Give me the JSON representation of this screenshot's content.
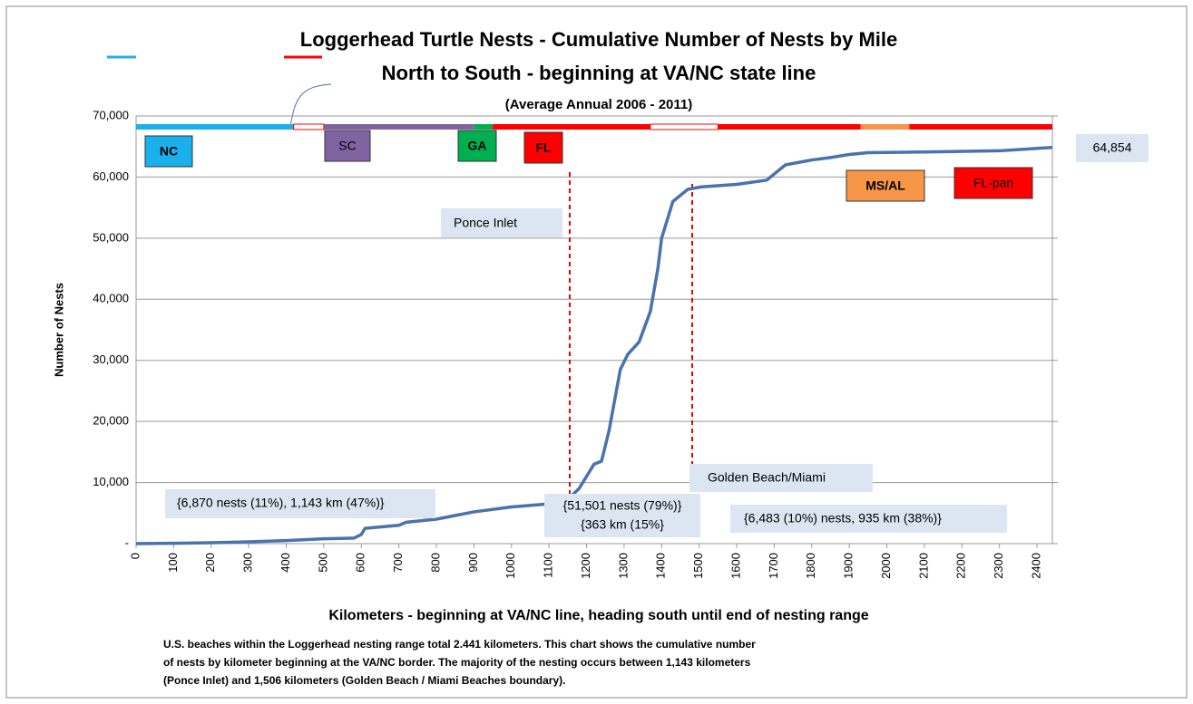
{
  "chart_data": {
    "type": "line",
    "title": "Loggerhead Turtle Nests - Cumulative Number of Nests by Mile",
    "subtitle": "North to South - beginning at VA/NC state line",
    "subtitle2": "(Average Annual  2006 - 2011)",
    "xlabel": "Kilometers - beginning at VA/NC line, heading south until end of nesting range",
    "ylabel": "Number of Nests",
    "xlim": [
      0,
      2441
    ],
    "ylim": [
      0,
      70000
    ],
    "xticks": [
      0,
      100,
      200,
      300,
      400,
      500,
      600,
      700,
      800,
      900,
      1000,
      1100,
      1200,
      1300,
      1400,
      1500,
      1600,
      1700,
      1800,
      1900,
      2000,
      2100,
      2200,
      2300,
      2400
    ],
    "yticks": [
      {
        "value": 0,
        "label": "-"
      },
      {
        "value": 10000,
        "label": "10,000"
      },
      {
        "value": 20000,
        "label": "20,000"
      },
      {
        "value": 30000,
        "label": "30,000"
      },
      {
        "value": 40000,
        "label": "40,000"
      },
      {
        "value": 50000,
        "label": "50,000"
      },
      {
        "value": 60000,
        "label": "60,000"
      },
      {
        "value": 70000,
        "label": "70,000"
      }
    ],
    "grid": true,
    "x": [
      0,
      100,
      200,
      300,
      400,
      500,
      580,
      600,
      610,
      700,
      720,
      800,
      900,
      1000,
      1100,
      1143,
      1180,
      1220,
      1240,
      1260,
      1290,
      1310,
      1340,
      1370,
      1390,
      1400,
      1430,
      1470,
      1506,
      1600,
      1680,
      1700,
      1730,
      1800,
      1850,
      1900,
      1950,
      2100,
      2300,
      2441
    ],
    "series": [
      {
        "color": "#4a72ad",
        "values": [
          0,
          50,
          150,
          300,
          500,
          800,
          900,
          1500,
          2500,
          3000,
          3500,
          4000,
          5200,
          6000,
          6500,
          6870,
          9000,
          13000,
          13500,
          18500,
          28500,
          31000,
          33000,
          38000,
          45000,
          50000,
          56000,
          58000,
          58400,
          58800,
          59500,
          60500,
          62000,
          62800,
          63200,
          63700,
          64000,
          64100,
          64300,
          64854
        ]
      }
    ],
    "regions": [
      {
        "label": "NC",
        "color": "#1ab0ec"
      },
      {
        "label": "SC",
        "color": "#8064a2"
      },
      {
        "label": "GA",
        "color": "#00b050"
      },
      {
        "label": "FL",
        "color": "#ff0000"
      },
      {
        "label": "MS/AL",
        "color": "#f79646"
      },
      {
        "label": "FL-pan",
        "color": "#ff0000"
      }
    ],
    "annotations": [
      "64,854",
      "Ponce Inlet",
      "Golden Beach/Miami",
      "{6,870 nests (11%), 1,143 km (47%)}",
      "{51,501 nests (79%)}",
      "{363 km (15%}",
      "{6,483 (10%) nests, 935 km (38%)}"
    ],
    "footnote": [
      "U.S. beaches within the Loggerhead nesting range total 2.441 kilometers.  This chart shows the cumulative number",
      "of nests by kilometer beginning at the VA/NC border.  The majority of the nesting occurs between 1,143 kilometers",
      "(Ponce Inlet) and 1,506 kilometers (Golden Beach / Miami Beaches boundary)."
    ]
  }
}
